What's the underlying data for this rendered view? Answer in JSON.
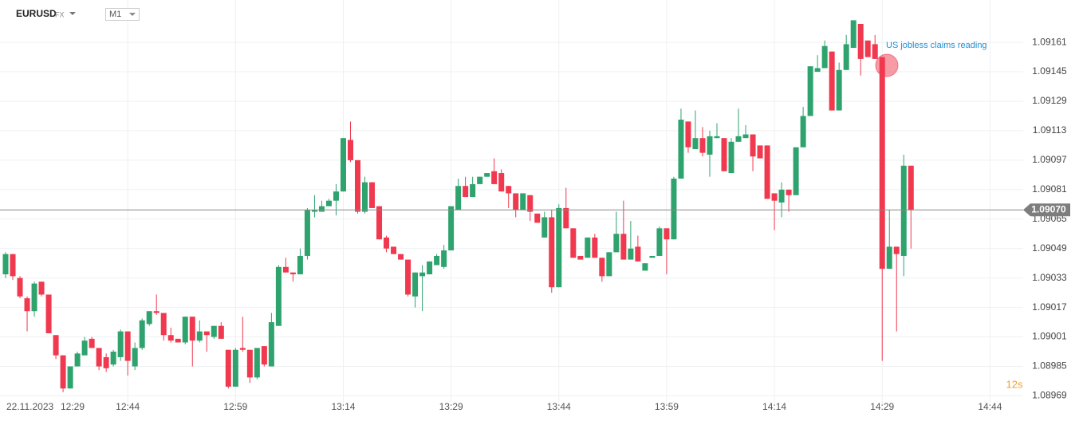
{
  "header": {
    "symbol": "EURUSD",
    "market": "FX",
    "timeframe": "M1"
  },
  "chart_data": {
    "type": "candlestick",
    "date": "22.11.2023",
    "start_time": "12:29",
    "annotation": "US jobless claims reading",
    "countdown": "12s",
    "up_color": "#2ea36e",
    "down_color": "#f0384f",
    "ylim": [
      1.08964,
      1.09184
    ],
    "yticks": [
      1.09161,
      1.09145,
      1.09129,
      1.09113,
      1.09097,
      1.09081,
      1.09065,
      1.09049,
      1.09033,
      1.09017,
      1.09001,
      1.08985,
      1.08969
    ],
    "grid": true,
    "current_price": {
      "value": 1.0907,
      "label": "1.09070"
    },
    "categories": [
      null,
      null,
      null,
      null,
      null,
      null,
      null,
      null,
      null,
      null,
      null,
      null,
      null,
      null,
      null,
      null,
      null,
      "12:44",
      null,
      null,
      null,
      null,
      null,
      null,
      null,
      null,
      null,
      null,
      null,
      null,
      null,
      null,
      "12:59",
      null,
      null,
      null,
      null,
      null,
      null,
      null,
      null,
      null,
      null,
      null,
      null,
      null,
      null,
      "13:14",
      null,
      null,
      null,
      null,
      null,
      null,
      null,
      null,
      null,
      null,
      null,
      null,
      null,
      null,
      "13:29",
      null,
      null,
      null,
      null,
      null,
      null,
      null,
      null,
      null,
      null,
      null,
      null,
      null,
      null,
      "13:44",
      null,
      null,
      null,
      null,
      null,
      null,
      null,
      null,
      null,
      null,
      null,
      null,
      null,
      null,
      "13:59",
      null,
      null,
      null,
      null,
      null,
      null,
      null,
      null,
      null,
      null,
      null,
      null,
      null,
      null,
      "14:14",
      null,
      null,
      null,
      null,
      null,
      null,
      null,
      null,
      null,
      null,
      null,
      null,
      null,
      null,
      "14:29",
      null,
      null,
      null,
      null,
      null,
      null,
      null,
      null,
      null,
      null,
      null,
      null,
      null,
      null,
      "14:44",
      null,
      null
    ],
    "open": [
      1.09035,
      1.09046,
      1.09033,
      1.09022,
      1.09015,
      1.09031,
      1.09024,
      1.09002,
      1.08991,
      1.08973,
      1.08985,
      1.08991,
      1.09,
      1.08995,
      1.0899,
      1.08986,
      1.0899,
      1.09004,
      1.08985,
      1.08995,
      1.09008,
      1.09015,
      1.09014,
      1.09002,
      1.09,
      1.08998,
      1.09012,
      1.08999,
      1.09004,
      1.09001,
      1.09007,
      1.08994,
      1.08974,
      1.08995,
      1.08994,
      1.08979,
      1.08996,
      1.08985,
      1.09007,
      1.09039,
      1.09036,
      1.09035,
      1.09045,
      1.09069,
      1.09069,
      1.09072,
      1.09075,
      1.0908,
      1.09108,
      1.09097,
      1.09069,
      1.09085,
      1.09072,
      1.09055,
      1.0905,
      1.09046,
      1.09043,
      1.09023,
      1.09034,
      1.09035,
      1.0904,
      1.09039,
      1.09048,
      1.0907,
      1.09083,
      1.09077,
      1.09084,
      1.09088,
      1.09091,
      1.0909,
      1.09083,
      1.09079,
      1.0907,
      1.09078,
      1.09068,
      1.09055,
      1.09066,
      1.09028,
      1.09071,
      1.0906,
      1.09045,
      1.09044,
      1.09055,
      1.09044,
      1.09034,
      1.09047,
      1.09057,
      1.09043,
      1.0905,
      1.09037,
      1.09044,
      1.09045,
      1.0906,
      1.09054,
      1.09087,
      1.09118,
      1.09103,
      1.09109,
      1.091,
      1.09109,
      1.09109,
      1.0909,
      1.09107,
      1.09109,
      1.09111,
      1.09105,
      1.09105,
      1.09079,
      1.09074,
      1.09081,
      1.09078,
      1.09104,
      1.09121,
      1.09145,
      1.09147,
      1.09156,
      1.09124,
      1.09146,
      1.09158,
      1.09171,
      1.09162,
      1.0916,
      1.09153,
      1.09038,
      1.0905,
      1.09045,
      1.09094,
      null,
      null,
      null,
      null,
      null,
      null,
      null,
      null,
      null,
      null,
      null,
      null,
      null
    ],
    "high": [
      1.09047,
      1.09046,
      1.09034,
      1.09023,
      1.09031,
      1.09031,
      1.09024,
      1.09002,
      1.08991,
      1.08985,
      1.08993,
      1.09001,
      1.09001,
      1.08995,
      1.08992,
      1.08994,
      1.09005,
      1.09004,
      1.08998,
      1.09011,
      1.09015,
      1.09024,
      1.09014,
      1.09006,
      1.09,
      1.09012,
      1.09012,
      1.0901,
      1.09004,
      1.09007,
      1.09009,
      1.08994,
      1.08995,
      1.09012,
      1.08994,
      1.08995,
      1.08996,
      1.09014,
      1.0904,
      1.09044,
      1.09036,
      1.09049,
      1.09071,
      1.09078,
      1.09075,
      1.09076,
      1.09084,
      1.09109,
      1.09118,
      1.09097,
      1.09088,
      1.09085,
      1.09072,
      1.09056,
      1.0905,
      1.09046,
      1.09043,
      1.09036,
      1.0904,
      1.09042,
      1.09046,
      1.09051,
      1.09072,
      1.09087,
      1.09088,
      1.09088,
      1.09088,
      1.0909,
      1.09098,
      1.09092,
      1.09083,
      1.09079,
      1.09079,
      1.09078,
      1.09068,
      1.09069,
      1.0907,
      1.09073,
      1.09082,
      1.0906,
      1.09045,
      1.09055,
      1.09057,
      1.09044,
      1.09047,
      1.09069,
      1.09075,
      1.09064,
      1.09056,
      1.09041,
      1.09045,
      1.09061,
      1.0906,
      1.09088,
      1.09125,
      1.09118,
      1.09124,
      1.09115,
      1.09113,
      1.09117,
      1.09109,
      1.09109,
      1.09125,
      1.09116,
      1.09111,
      1.09105,
      1.09105,
      1.09079,
      1.09085,
      1.09081,
      1.09104,
      1.09126,
      1.09148,
      1.09154,
      1.09162,
      1.09156,
      1.0915,
      1.09165,
      1.09173,
      1.09171,
      1.09162,
      1.09165,
      1.09153,
      1.0907,
      1.0905,
      1.091,
      1.09094,
      null,
      null,
      null,
      null,
      null,
      null,
      null,
      null,
      null,
      null,
      null,
      null,
      null
    ],
    "low": [
      1.09033,
      1.09032,
      1.09022,
      1.09004,
      1.09012,
      1.09023,
      1.09003,
      1.08989,
      1.08971,
      1.08973,
      1.08985,
      1.08991,
      1.08995,
      1.08983,
      1.08982,
      1.08985,
      1.08988,
      1.0898,
      1.08983,
      1.08994,
      1.09007,
      1.09013,
      1.08999,
      1.08998,
      1.08998,
      1.08997,
      1.08985,
      1.08998,
      1.08993,
      1.09,
      1.09,
      1.08973,
      1.08974,
      1.08993,
      1.08976,
      1.08978,
      1.08985,
      1.08985,
      1.09007,
      1.09036,
      1.09031,
      1.09035,
      1.09043,
      1.09066,
      1.09069,
      1.09072,
      1.09067,
      1.0908,
      1.09096,
      1.09068,
      1.09068,
      1.09071,
      1.09054,
      1.09047,
      1.09046,
      1.09043,
      1.09023,
      1.09017,
      1.09015,
      1.09035,
      1.0904,
      1.09038,
      1.09048,
      1.0907,
      1.09077,
      1.09077,
      1.09084,
      1.09088,
      1.09084,
      1.0908,
      1.09071,
      1.09066,
      1.0907,
      1.09064,
      1.09063,
      1.09055,
      1.09025,
      1.09028,
      1.0906,
      1.09044,
      1.09043,
      1.09044,
      1.09044,
      1.09031,
      1.09034,
      1.09047,
      1.09043,
      1.09043,
      1.09042,
      1.09037,
      1.09044,
      1.09045,
      1.09035,
      1.09054,
      1.09087,
      1.09101,
      1.09103,
      1.09099,
      1.09088,
      1.09109,
      1.09091,
      1.0909,
      1.09107,
      1.09109,
      1.09091,
      1.09098,
      1.09076,
      1.09059,
      1.09066,
      1.09069,
      1.09078,
      1.09104,
      1.09121,
      1.09145,
      1.09147,
      1.09124,
      1.09124,
      1.09146,
      1.09158,
      1.09143,
      1.09153,
      1.09152,
      1.08988,
      1.09038,
      1.09004,
      1.09034,
      1.09049,
      null,
      null,
      null,
      null,
      null,
      null,
      null,
      null,
      null,
      null,
      null,
      null,
      null
    ],
    "close": [
      1.09046,
      1.09034,
      1.09023,
      1.09015,
      1.0903,
      1.09024,
      1.09003,
      1.08991,
      1.08973,
      1.08985,
      1.08992,
      1.08999,
      1.08995,
      1.08985,
      1.08984,
      1.08993,
      1.09004,
      1.08988,
      1.08995,
      1.0901,
      1.09015,
      1.09014,
      1.09002,
      1.08999,
      1.08998,
      1.09012,
      1.08999,
      1.09004,
      1.09002,
      1.09007,
      1.09,
      1.08974,
      1.08994,
      1.08994,
      1.08979,
      1.08995,
      1.08986,
      1.09009,
      1.09039,
      1.09036,
      1.09035,
      1.09045,
      1.0907,
      1.0907,
      1.09072,
      1.09075,
      1.0908,
      1.09109,
      1.09097,
      1.09069,
      1.09085,
      1.09071,
      1.09054,
      1.09049,
      1.09046,
      1.09043,
      1.09024,
      1.09036,
      1.09036,
      1.09042,
      1.09045,
      1.09048,
      1.09072,
      1.09083,
      1.09077,
      1.09084,
      1.09088,
      1.0909,
      1.09084,
      1.0908,
      1.09079,
      1.0907,
      1.09079,
      1.09069,
      1.09063,
      1.09066,
      1.09028,
      1.09071,
      1.0906,
      1.09044,
      1.09043,
      1.09055,
      1.09044,
      1.09034,
      1.09047,
      1.09057,
      1.09043,
      1.09049,
      1.09042,
      1.09041,
      1.09045,
      1.0906,
      1.09054,
      1.09087,
      1.09119,
      1.09104,
      1.09109,
      1.09101,
      1.0911,
      1.0911,
      1.09091,
      1.09107,
      1.0911,
      1.09111,
      1.09099,
      1.09098,
      1.09076,
      1.09075,
      1.09081,
      1.09078,
      1.09104,
      1.09121,
      1.09148,
      1.09147,
      1.09159,
      1.09124,
      1.09146,
      1.0916,
      1.09173,
      1.09152,
      1.09153,
      1.09152,
      1.09038,
      1.0905,
      1.09046,
      1.09094,
      1.0907,
      null,
      null,
      null,
      null,
      null,
      null,
      null,
      null,
      null,
      null,
      null,
      null,
      null
    ]
  }
}
